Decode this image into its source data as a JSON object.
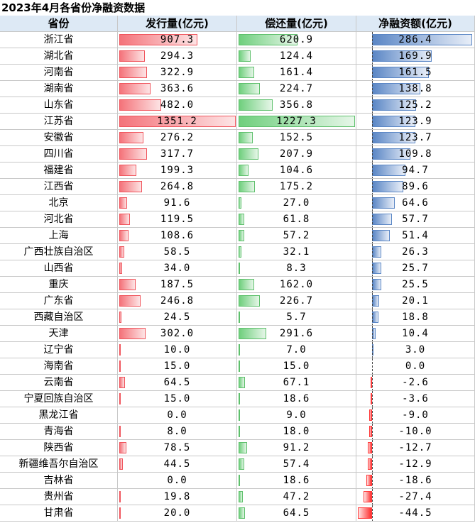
{
  "title": "2023年4月各省份净融资数据",
  "headers": [
    "省份",
    "发行量(亿元)",
    "偿还量(亿元)",
    "净融资额(亿元)"
  ],
  "colors": {
    "issue_bar": "#f4737a",
    "repay_bar": "#6fcf7d",
    "net_positive_bar": "#5a86c5",
    "net_negative_bar": "#ff2d2d",
    "header_bg": "#dde9f5"
  },
  "chart_data": {
    "type": "table",
    "title": "2023年4月各省份净融资数据",
    "columns": [
      "省份",
      "发行量(亿元)",
      "偿还量(亿元)",
      "净融资额(亿元)"
    ],
    "rows": [
      {
        "province": "浙江省",
        "issue": "907.3",
        "repay": "620.9",
        "net": "286.4"
      },
      {
        "province": "湖北省",
        "issue": "294.3",
        "repay": "124.4",
        "net": "169.9"
      },
      {
        "province": "河南省",
        "issue": "322.9",
        "repay": "161.4",
        "net": "161.5"
      },
      {
        "province": "湖南省",
        "issue": "363.6",
        "repay": "224.7",
        "net": "138.8"
      },
      {
        "province": "山东省",
        "issue": "482.0",
        "repay": "356.8",
        "net": "125.2"
      },
      {
        "province": "江苏省",
        "issue": "1351.2",
        "repay": "1227.3",
        "net": "123.9"
      },
      {
        "province": "安徽省",
        "issue": "276.2",
        "repay": "152.5",
        "net": "123.7"
      },
      {
        "province": "四川省",
        "issue": "317.7",
        "repay": "207.9",
        "net": "109.8"
      },
      {
        "province": "福建省",
        "issue": "199.3",
        "repay": "104.6",
        "net": "94.7"
      },
      {
        "province": "江西省",
        "issue": "264.8",
        "repay": "175.2",
        "net": "89.6"
      },
      {
        "province": "北京",
        "issue": "91.6",
        "repay": "27.0",
        "net": "64.6"
      },
      {
        "province": "河北省",
        "issue": "119.5",
        "repay": "61.8",
        "net": "57.7"
      },
      {
        "province": "上海",
        "issue": "108.6",
        "repay": "57.2",
        "net": "51.4"
      },
      {
        "province": "广西壮族自治区",
        "issue": "58.5",
        "repay": "32.1",
        "net": "26.3"
      },
      {
        "province": "山西省",
        "issue": "34.0",
        "repay": "8.3",
        "net": "25.7"
      },
      {
        "province": "重庆",
        "issue": "187.5",
        "repay": "162.0",
        "net": "25.5"
      },
      {
        "province": "广东省",
        "issue": "246.8",
        "repay": "226.7",
        "net": "20.1"
      },
      {
        "province": "西藏自治区",
        "issue": "24.5",
        "repay": "5.7",
        "net": "18.8"
      },
      {
        "province": "天津",
        "issue": "302.0",
        "repay": "291.6",
        "net": "10.4"
      },
      {
        "province": "辽宁省",
        "issue": "10.0",
        "repay": "7.0",
        "net": "3.0"
      },
      {
        "province": "海南省",
        "issue": "15.0",
        "repay": "15.0",
        "net": "0.0"
      },
      {
        "province": "云南省",
        "issue": "64.5",
        "repay": "67.1",
        "net": "-2.6"
      },
      {
        "province": "宁夏回族自治区",
        "issue": "15.0",
        "repay": "18.6",
        "net": "-3.6"
      },
      {
        "province": "黑龙江省",
        "issue": "0.0",
        "repay": "9.0",
        "net": "-9.0"
      },
      {
        "province": "青海省",
        "issue": "8.0",
        "repay": "18.0",
        "net": "-10.0"
      },
      {
        "province": "陕西省",
        "issue": "78.5",
        "repay": "91.2",
        "net": "-12.7"
      },
      {
        "province": "新疆维吾尔自治区",
        "issue": "44.5",
        "repay": "57.4",
        "net": "-12.9"
      },
      {
        "province": "吉林省",
        "issue": "0.0",
        "repay": "18.6",
        "net": "-18.6"
      },
      {
        "province": "贵州省",
        "issue": "19.8",
        "repay": "47.2",
        "net": "-27.4"
      },
      {
        "province": "甘肃省",
        "issue": "20.0",
        "repay": "64.5",
        "net": "-44.5"
      }
    ]
  }
}
